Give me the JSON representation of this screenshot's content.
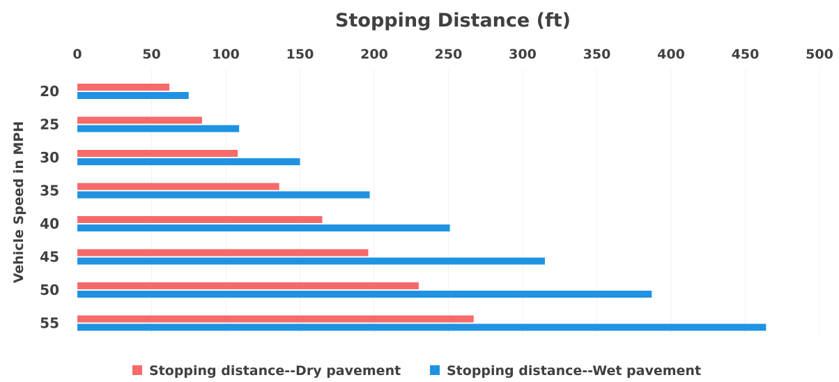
{
  "chart_data": {
    "type": "bar",
    "orientation": "horizontal",
    "title": "Stopping Distance (ft)",
    "xlabel": "",
    "ylabel": "Vehicle Speed in MPH",
    "xlim": [
      0,
      500
    ],
    "x_ticks": [
      "0",
      "50",
      "100",
      "150",
      "200",
      "250",
      "300",
      "350",
      "400",
      "450",
      "500"
    ],
    "x_axis_position": "top",
    "categories": [
      "20",
      "25",
      "30",
      "35",
      "40",
      "45",
      "50",
      "55"
    ],
    "series": [
      {
        "name": "Stopping distance--Dry pavement",
        "color": "#f76a6a",
        "values": [
          62,
          84,
          108,
          136,
          165,
          196,
          230,
          267
        ]
      },
      {
        "name": "Stopping distance--Wet pavement",
        "color": "#1f93e2",
        "values": [
          75,
          109,
          150,
          197,
          251,
          315,
          387,
          464
        ]
      }
    ],
    "legend_position": "bottom",
    "grid": true
  }
}
